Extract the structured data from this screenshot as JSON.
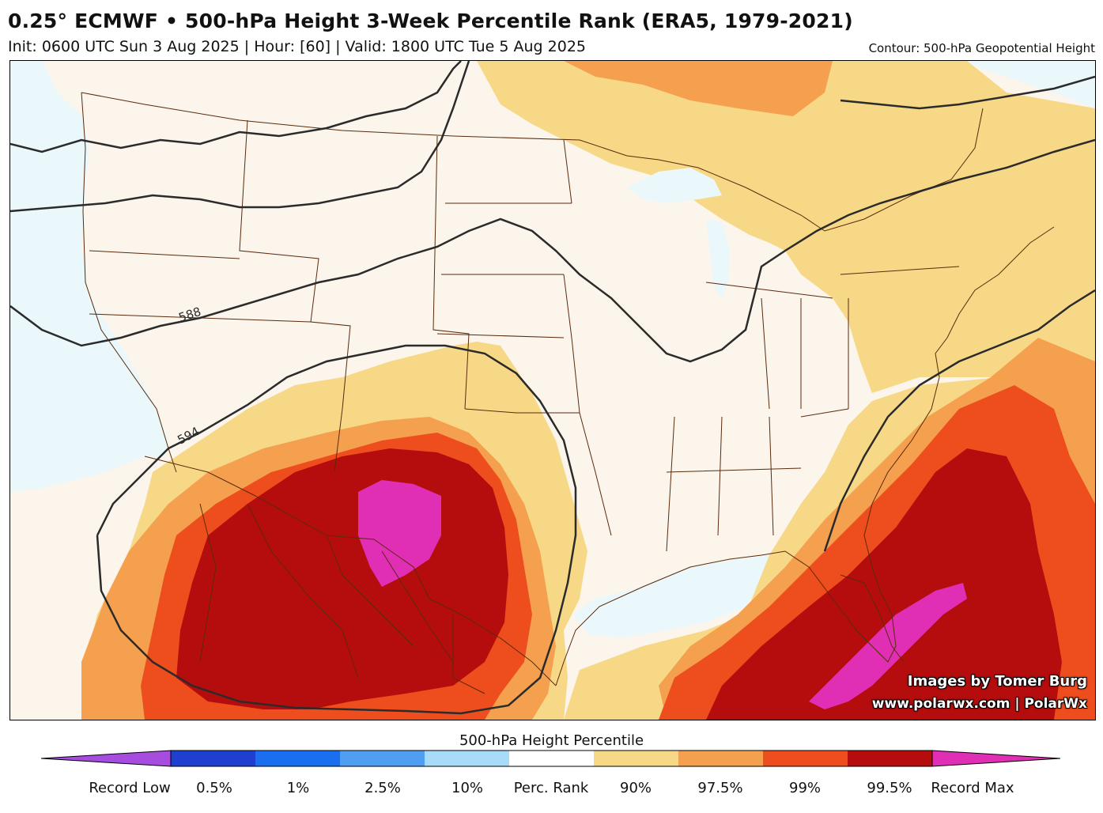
{
  "header": {
    "title": "0.25° ECMWF • 500-hPa Height 3-Week Percentile Rank (ERA5, 1979-2021)",
    "subtitle": "Init: 0600 UTC Sun 3 Aug 2025 | Hour: [60] | Valid: 1800 UTC Tue 5 Aug 2025",
    "contour_note": "Contour: 500-hPa Geopotential Height"
  },
  "map": {
    "contour_labels": [
      "588",
      "594"
    ],
    "credit_line1": "Images by Tomer Burg",
    "credit_line2": "www.polarwx.com | PolarWx"
  },
  "colorbar": {
    "title": "500-hPa Height Percentile",
    "labels": [
      "Record Low",
      "0.5%",
      "1%",
      "2.5%",
      "10%",
      "Perc. Rank",
      "90%",
      "97.5%",
      "99%",
      "99.5%",
      "Record Max"
    ],
    "colors": [
      "#a64ddf",
      "#1f3fcf",
      "#1a6ff0",
      "#4f9ef2",
      "#a8dbf9",
      "#ffffff",
      "#f7d886",
      "#f5a04e",
      "#ee4d1d",
      "#b50d0d",
      "#e02fb5"
    ],
    "background_color": "#fbf5ec",
    "lake_color": "#eaf7fb"
  }
}
